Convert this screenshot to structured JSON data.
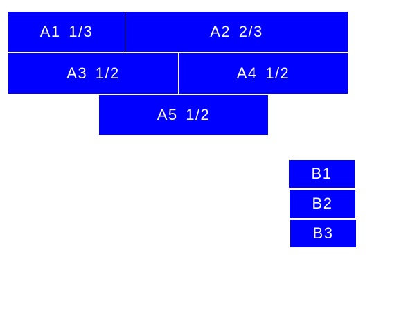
{
  "colors": {
    "box": "#0000ff",
    "text": "#ffffff",
    "background": "#ffffff"
  },
  "group_a": [
    {
      "label": "A1 1/3"
    },
    {
      "label": "A2 2/3"
    },
    {
      "label": "A3 1/2"
    },
    {
      "label": "A4 1/2"
    },
    {
      "label": "A5 1/2"
    }
  ],
  "group_b": [
    {
      "label": "B1"
    },
    {
      "label": "B2"
    },
    {
      "label": "B3"
    }
  ]
}
